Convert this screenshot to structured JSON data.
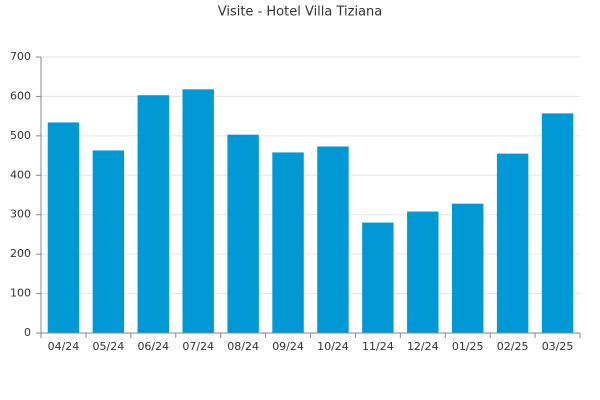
{
  "chart_data": {
    "type": "bar",
    "title": "Visite - Hotel Villa Tiziana",
    "categories": [
      "04/24",
      "05/24",
      "06/24",
      "07/24",
      "08/24",
      "09/24",
      "10/24",
      "11/24",
      "12/24",
      "01/25",
      "02/25",
      "03/25"
    ],
    "values": [
      534,
      463,
      603,
      618,
      503,
      458,
      473,
      280,
      308,
      328,
      455,
      557
    ],
    "color": "#0099d6",
    "ylim": [
      0,
      700
    ],
    "yticks": [
      0,
      100,
      200,
      300,
      400,
      500,
      600,
      700
    ],
    "grid": true
  }
}
